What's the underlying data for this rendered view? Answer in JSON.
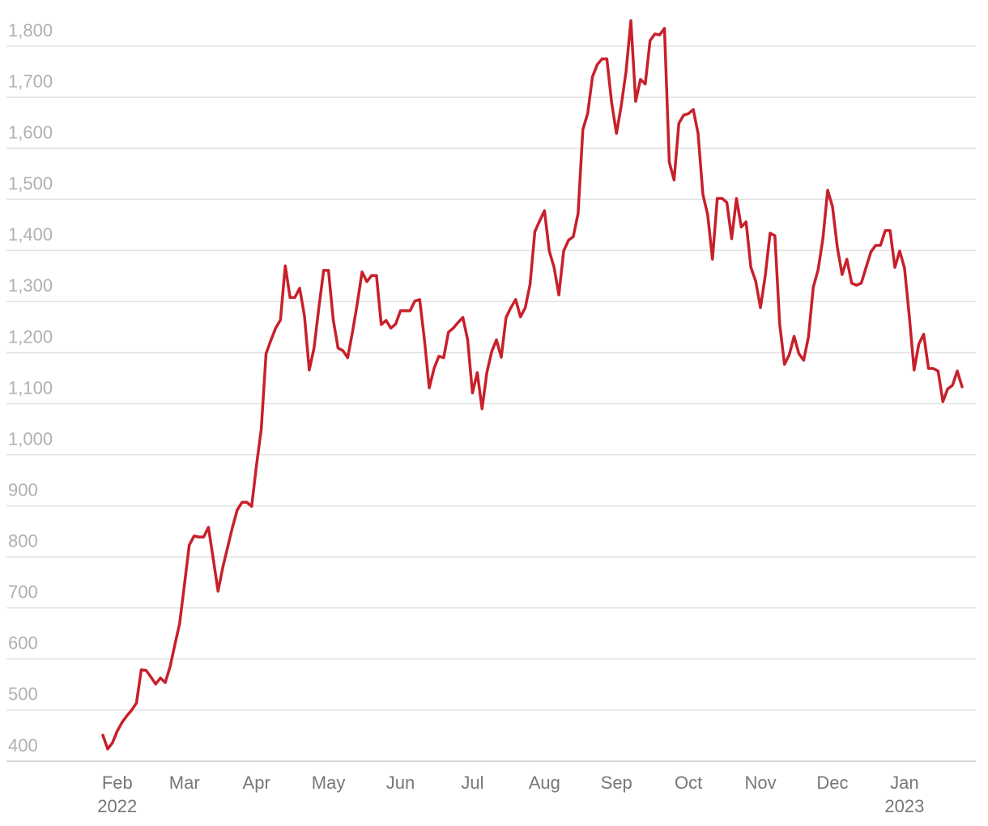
{
  "chart_data": {
    "type": "line",
    "categories": [
      null,
      null,
      null,
      "Feb\n2022",
      null,
      null,
      null,
      null,
      null,
      null,
      null,
      null,
      null,
      null,
      null,
      null,
      null,
      "Mar",
      null,
      null,
      null,
      null,
      null,
      null,
      null,
      null,
      null,
      null,
      null,
      null,
      null,
      null,
      "Apr",
      null,
      null,
      null,
      null,
      null,
      null,
      null,
      null,
      null,
      null,
      null,
      null,
      null,
      null,
      "May",
      null,
      null,
      null,
      null,
      null,
      null,
      null,
      null,
      null,
      null,
      null,
      null,
      null,
      null,
      "Jun",
      null,
      null,
      null,
      null,
      null,
      null,
      null,
      null,
      null,
      null,
      null,
      null,
      null,
      null,
      "Jul",
      null,
      null,
      null,
      null,
      null,
      null,
      null,
      null,
      null,
      null,
      null,
      null,
      null,
      null,
      "Aug",
      null,
      null,
      null,
      null,
      null,
      null,
      null,
      null,
      null,
      null,
      null,
      null,
      null,
      null,
      "Sep",
      null,
      null,
      null,
      null,
      null,
      null,
      null,
      null,
      null,
      null,
      null,
      null,
      null,
      null,
      "Oct",
      null,
      null,
      null,
      null,
      null,
      null,
      null,
      null,
      null,
      null,
      null,
      null,
      null,
      null,
      "Nov",
      null,
      null,
      null,
      null,
      null,
      null,
      null,
      null,
      null,
      null,
      null,
      null,
      null,
      null,
      "Dec",
      null,
      null,
      null,
      null,
      null,
      null,
      null,
      null,
      null,
      null,
      null,
      null,
      null,
      null,
      "Jan\n2023",
      null,
      null,
      null,
      null,
      null,
      null,
      null,
      null,
      null,
      null,
      null,
      null
    ],
    "values": [
      451,
      424,
      436,
      459,
      476,
      489,
      500,
      514,
      579,
      578,
      565,
      551,
      563,
      554,
      585,
      628,
      670,
      746,
      823,
      841,
      839,
      839,
      858,
      796,
      733,
      780,
      819,
      858,
      892,
      907,
      907,
      899,
      979,
      1050,
      1198,
      1224,
      1248,
      1264,
      1370,
      1308,
      1308,
      1326,
      1272,
      1166,
      1209,
      1288,
      1361,
      1361,
      1264,
      1209,
      1204,
      1190,
      1240,
      1296,
      1358,
      1339,
      1351,
      1351,
      1255,
      1263,
      1248,
      1256,
      1282,
      1282,
      1282,
      1301,
      1304,
      1225,
      1131,
      1169,
      1193,
      1190,
      1240,
      1248,
      1259,
      1269,
      1225,
      1121,
      1161,
      1090,
      1161,
      1202,
      1225,
      1191,
      1269,
      1288,
      1304,
      1270,
      1288,
      1334,
      1437,
      1458,
      1478,
      1399,
      1367,
      1313,
      1399,
      1420,
      1427,
      1472,
      1637,
      1668,
      1740,
      1764,
      1775,
      1775,
      1689,
      1629,
      1684,
      1751,
      1850,
      1692,
      1735,
      1726,
      1811,
      1824,
      1822,
      1835,
      1573,
      1538,
      1649,
      1665,
      1668,
      1676,
      1629,
      1510,
      1470,
      1383,
      1502,
      1502,
      1494,
      1423,
      1502,
      1446,
      1456,
      1367,
      1340,
      1288,
      1351,
      1434,
      1429,
      1256,
      1177,
      1196,
      1232,
      1198,
      1185,
      1231,
      1328,
      1362,
      1423,
      1518,
      1486,
      1407,
      1353,
      1383,
      1336,
      1332,
      1336,
      1367,
      1397,
      1410,
      1410,
      1439,
      1439,
      1367,
      1399,
      1366,
      1272,
      1166,
      1217,
      1236,
      1169,
      1169,
      1164,
      1104,
      1129,
      1136,
      1164,
      1133
    ],
    "color": "#c8202a",
    "ylim": [
      400,
      1850
    ],
    "yticks": [
      400,
      500,
      600,
      700,
      800,
      900,
      {
        "value": 1000,
        "label": "1,000"
      },
      {
        "value": 1100,
        "label": "1,100"
      },
      {
        "value": 1200,
        "label": "1,200"
      },
      {
        "value": 1300,
        "label": "1,300"
      },
      {
        "value": 1400,
        "label": "1,400"
      },
      {
        "value": 1500,
        "label": "1,500"
      },
      {
        "value": 1600,
        "label": "1,600"
      },
      {
        "value": 1700,
        "label": "1,700"
      },
      {
        "value": 1800,
        "label": "1,800"
      }
    ],
    "grid": true
  }
}
